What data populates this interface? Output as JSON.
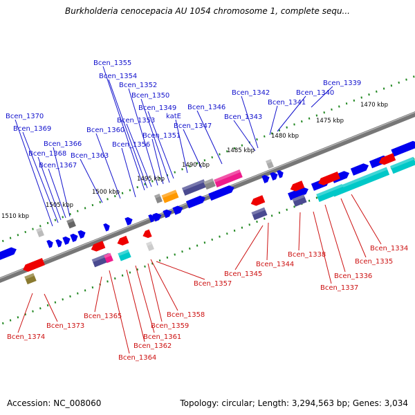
{
  "title": "Burkholderia cenocepacia AU 1054 chromosome 1, complete sequ...",
  "footer": {
    "accession": "Accession: NC_008060",
    "summary": "Topology: circular; Length: 3,294,563 bp; Genes: 3,034"
  },
  "colors": {
    "forward_label": "#1010cc",
    "reverse_label": "#cc1010",
    "forward_arrow": "#0000ee",
    "reverse_arrow": "#ee0000",
    "backbone": "#777777",
    "ticks": "#228822",
    "cyan": "#00c8c8",
    "magenta": "#ee1c8c",
    "orange": "#ff9900",
    "slate": "#4a4a90",
    "gray_block": "#888888"
  },
  "kbp_ticks": [
    "1470 kbp",
    "1475 kbp",
    "1480 kbp",
    "1485 kbp",
    "1490 kbp",
    "1495 kbp",
    "1500 kbp",
    "1505 kbp",
    "1510 kbp"
  ],
  "forward_genes": [
    "Bcen_1339",
    "Bcen_1340",
    "Bcen_1341",
    "Bcen_1342",
    "Bcen_1343",
    "Bcen_1346",
    "Bcen_1347",
    "katE",
    "Bcen_1349",
    "Bcen_1350",
    "Bcen_1351",
    "Bcen_1352",
    "Bcen_1353",
    "Bcen_1354",
    "Bcen_1355",
    "Bcen_1356",
    "Bcen_1360",
    "Bcen_1363",
    "Bcen_1366",
    "Bcen_1367",
    "Bcen_1368",
    "Bcen_1369",
    "Bcen_1370"
  ],
  "reverse_genes": [
    "Bcen_1334",
    "Bcen_1335",
    "Bcen_1336",
    "Bcen_1337",
    "Bcen_1338",
    "Bcen_1344",
    "Bcen_1345",
    "Bcen_1357",
    "Bcen_1358",
    "Bcen_1359",
    "Bcen_1361",
    "Bcen_1362",
    "Bcen_1364",
    "Bcen_1365",
    "Bcen_1373",
    "Bcen_1374"
  ]
}
